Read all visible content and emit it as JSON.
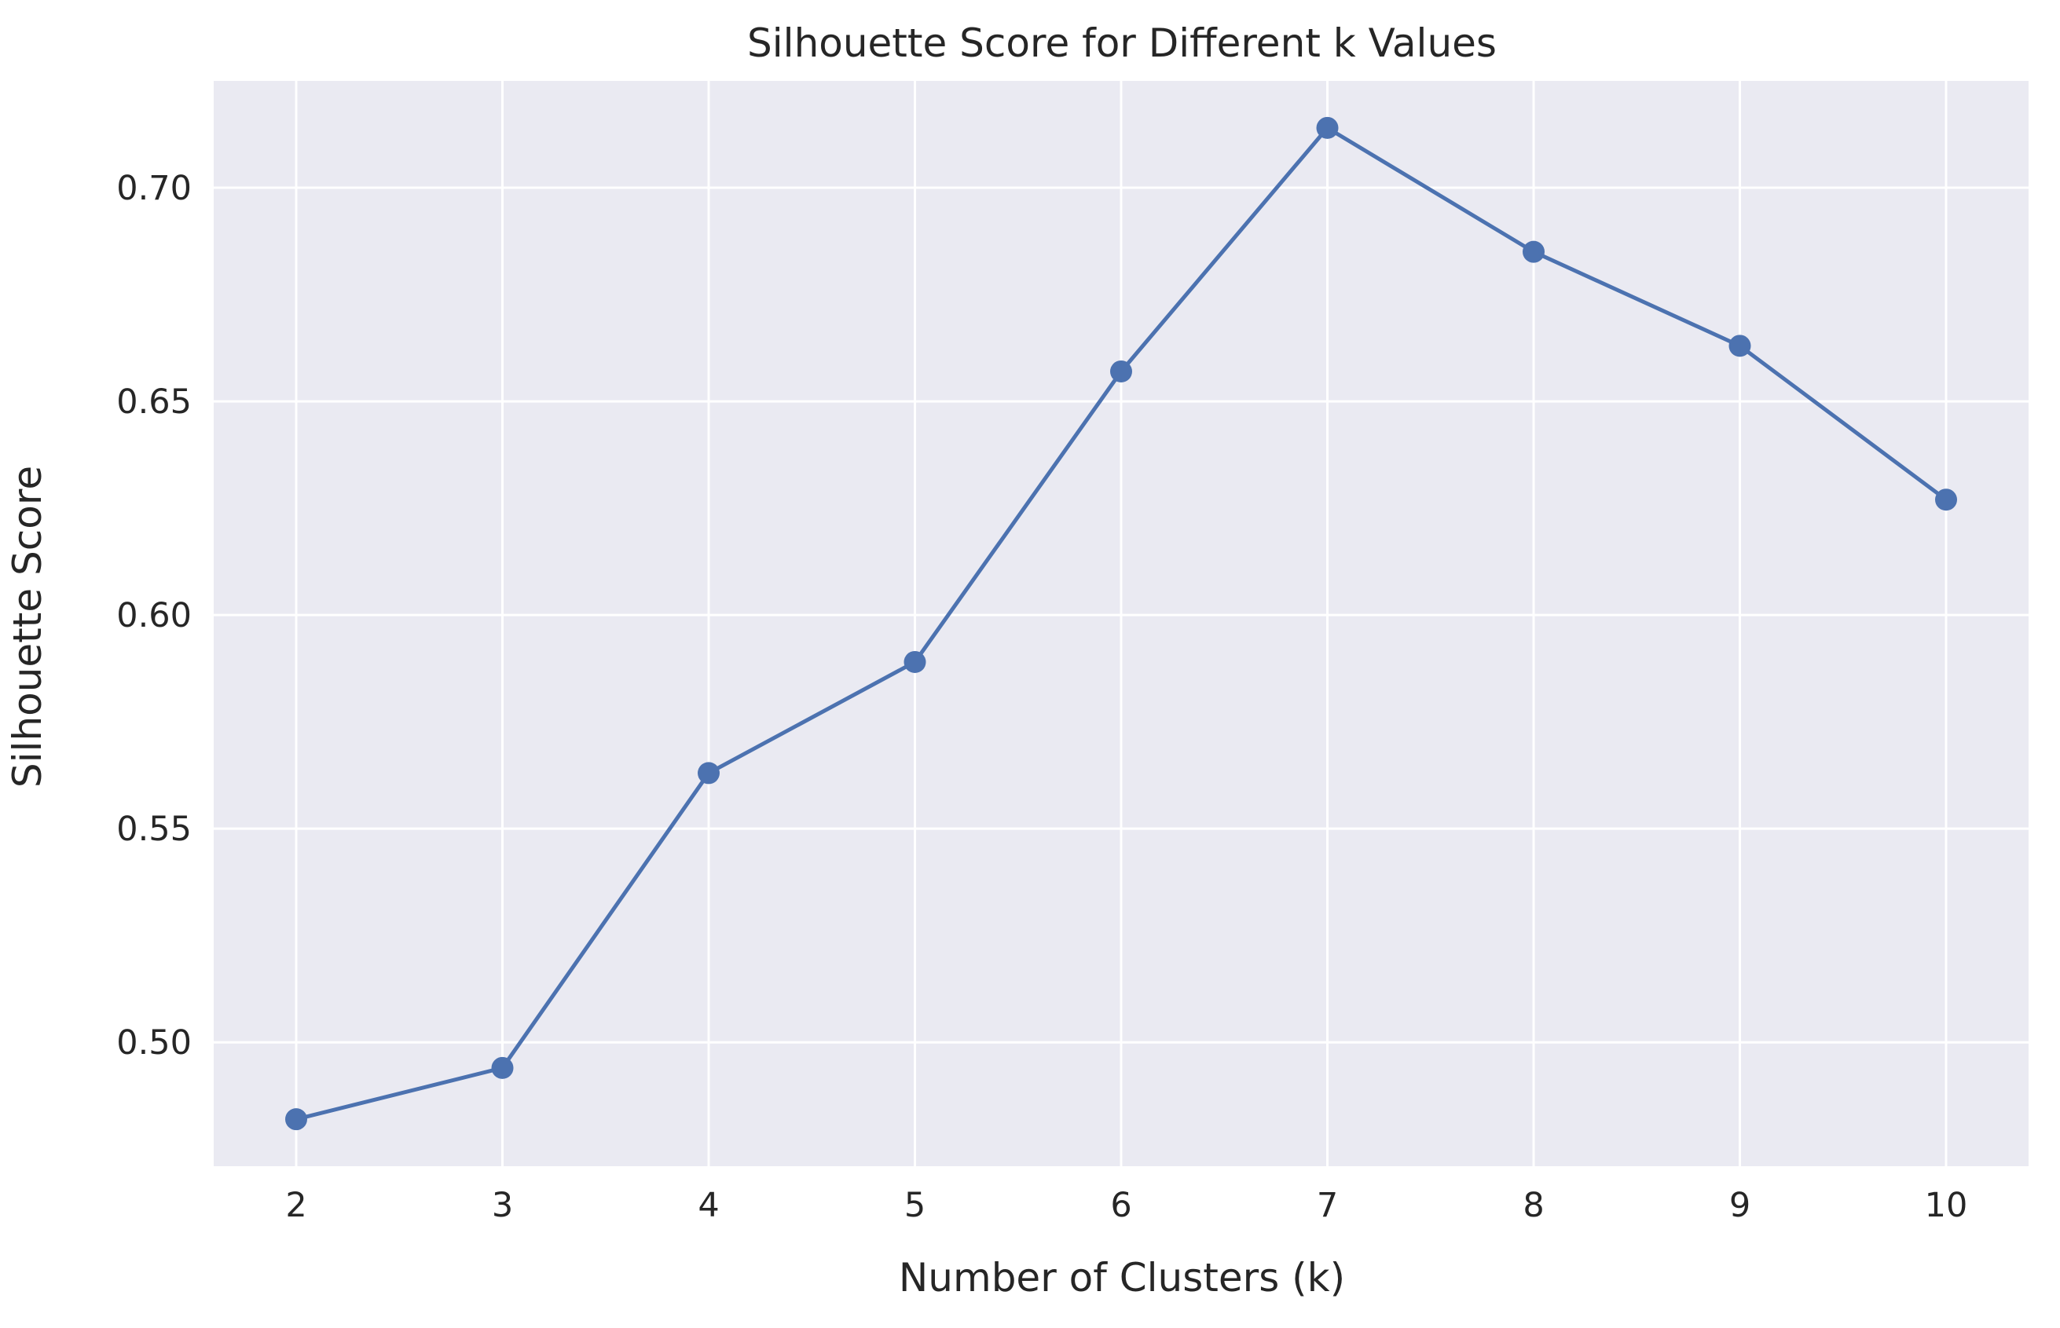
{
  "chart_data": {
    "type": "line",
    "title": "Silhouette Score for Different k Values",
    "xlabel": "Number of Clusters (k)",
    "ylabel": "Silhouette Score",
    "xlim": [
      1.6,
      10.4
    ],
    "ylim": [
      0.471,
      0.725
    ],
    "xticks": [
      2,
      3,
      4,
      5,
      6,
      7,
      8,
      9,
      10
    ],
    "xtick_labels": [
      "2",
      "3",
      "4",
      "5",
      "6",
      "7",
      "8",
      "9",
      "10"
    ],
    "yticks": [
      0.5,
      0.55,
      0.6,
      0.65,
      0.7
    ],
    "ytick_labels": [
      "0.50",
      "0.55",
      "0.60",
      "0.65",
      "0.70"
    ],
    "grid": true,
    "background_color": "#eaeaf2",
    "grid_color": "#ffffff",
    "series": [
      {
        "color": "#4c72b0",
        "marker": "circle",
        "x": [
          2,
          3,
          4,
          5,
          6,
          7,
          8,
          9,
          10
        ],
        "y": [
          0.482,
          0.494,
          0.563,
          0.589,
          0.657,
          0.714,
          0.685,
          0.663,
          0.627
        ]
      }
    ]
  }
}
